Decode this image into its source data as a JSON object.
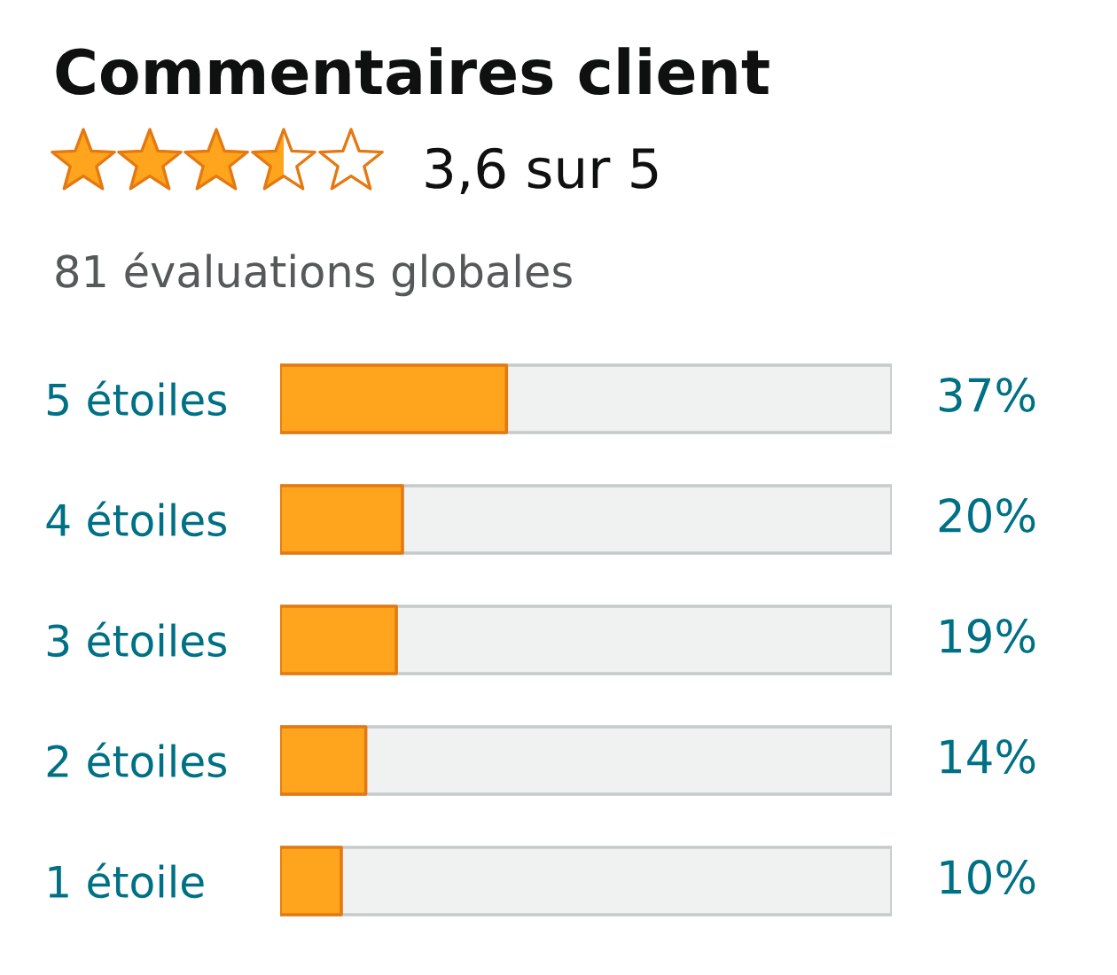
{
  "chart_data": {
    "type": "bar",
    "orientation": "horizontal",
    "title": "Commentaires client",
    "subtitle": "3,6 sur 5",
    "annotations": [
      "81 évaluations globales"
    ],
    "categories": [
      "5 étoiles",
      "4 étoiles",
      "3 étoiles",
      "2 étoiles",
      "1 étoile"
    ],
    "values": [
      37,
      20,
      19,
      14,
      10
    ],
    "color": "#ffa41c",
    "value_labels": [
      "37%",
      "20%",
      "19%",
      "14%",
      "10%"
    ],
    "xlim": [
      0,
      100
    ],
    "tick_labels": "y"
  }
}
